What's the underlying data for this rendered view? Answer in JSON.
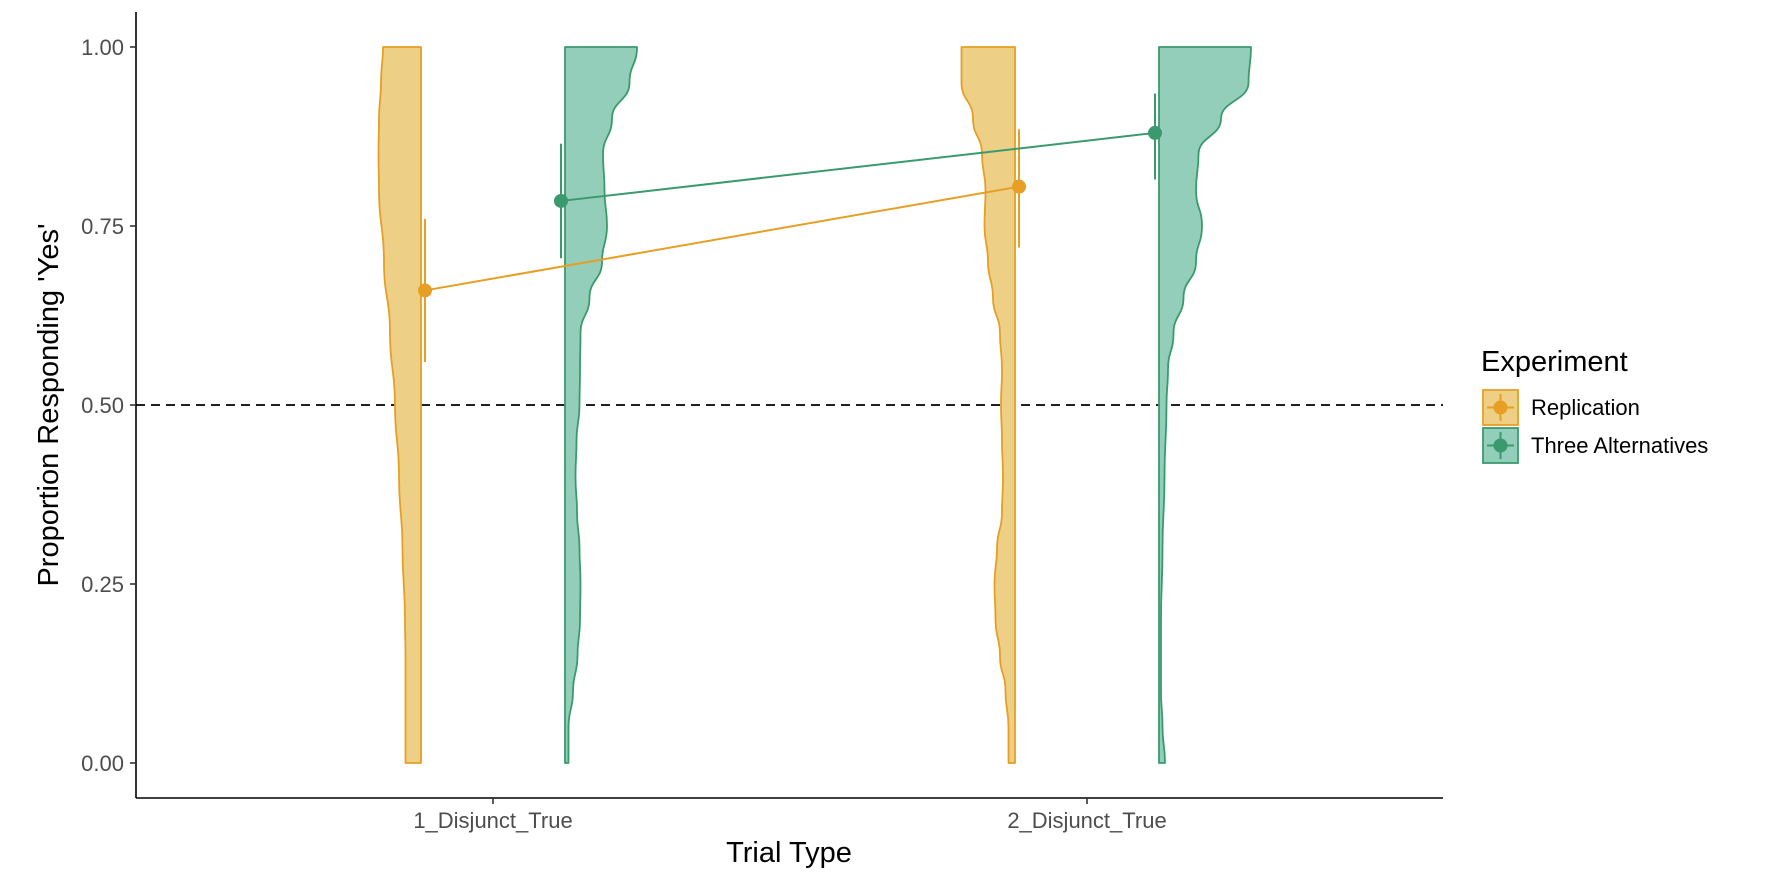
{
  "chart_data": {
    "type": "violin",
    "xlabel": "Trial Type",
    "ylabel": "Proportion Responding 'Yes'",
    "categories": [
      "1_Disjunct_True",
      "2_Disjunct_True"
    ],
    "ylim": [
      -0.05,
      1.05
    ],
    "yticks": [
      0.0,
      0.25,
      0.5,
      0.75,
      1.0
    ],
    "ytick_labels": [
      "0.00",
      "0.25",
      "0.50",
      "0.75",
      "1.00"
    ],
    "reference_line": {
      "y": 0.5,
      "style": "dashed",
      "color": "#000000"
    },
    "grid": false,
    "legend": {
      "title": "Experiment",
      "position": "right",
      "entries": [
        "Replication",
        "Three Alternatives"
      ]
    },
    "series": [
      {
        "name": "Replication",
        "color": "#E69F24",
        "fill": "#EDCF86",
        "side": "left",
        "points": [
          {
            "x": "1_Disjunct_True",
            "mean": 0.66,
            "ci_low": 0.56,
            "ci_high": 0.76
          },
          {
            "x": "2_Disjunct_True",
            "mean": 0.805,
            "ci_low": 0.72,
            "ci_high": 0.885
          }
        ],
        "density": [
          {
            "x": "1_Disjunct_True",
            "y": [
              0.0,
              0.05,
              0.1,
              0.15,
              0.2,
              0.3,
              0.4,
              0.5,
              0.6,
              0.7,
              0.8,
              0.85,
              0.9,
              0.95,
              1.0
            ],
            "width": [
              0.27,
              0.27,
              0.27,
              0.27,
              0.28,
              0.33,
              0.4,
              0.48,
              0.58,
              0.7,
              0.8,
              0.81,
              0.8,
              0.76,
              0.72
            ]
          },
          {
            "x": "2_Disjunct_True",
            "y": [
              0.0,
              0.05,
              0.1,
              0.15,
              0.2,
              0.25,
              0.3,
              0.35,
              0.4,
              0.45,
              0.5,
              0.55,
              0.6,
              0.65,
              0.7,
              0.75,
              0.8,
              0.85,
              0.9,
              0.95,
              1.0
            ],
            "width": [
              0.09,
              0.09,
              0.15,
              0.26,
              0.35,
              0.37,
              0.32,
              0.22,
              0.2,
              0.22,
              0.24,
              0.22,
              0.26,
              0.4,
              0.5,
              0.57,
              0.55,
              0.62,
              0.8,
              1.03,
              1.03
            ]
          }
        ]
      },
      {
        "name": "Three Alternatives",
        "color": "#3A9A6E",
        "fill": "#93CEBA",
        "side": "right",
        "points": [
          {
            "x": "1_Disjunct_True",
            "mean": 0.785,
            "ci_low": 0.705,
            "ci_high": 0.865
          },
          {
            "x": "2_Disjunct_True",
            "mean": 0.88,
            "ci_low": 0.815,
            "ci_high": 0.935
          }
        ],
        "density": [
          {
            "x": "1_Disjunct_True",
            "y": [
              0.0,
              0.05,
              0.1,
              0.15,
              0.2,
              0.25,
              0.3,
              0.35,
              0.4,
              0.45,
              0.5,
              0.55,
              0.6,
              0.65,
              0.7,
              0.75,
              0.8,
              0.85,
              0.9,
              0.95,
              1.0
            ],
            "width": [
              0.03,
              0.03,
              0.12,
              0.21,
              0.26,
              0.27,
              0.25,
              0.2,
              0.17,
              0.19,
              0.25,
              0.26,
              0.27,
              0.45,
              0.7,
              0.8,
              0.75,
              0.72,
              0.9,
              1.25,
              1.4
            ]
          },
          {
            "x": "2_Disjunct_True",
            "y": [
              0.0,
              0.05,
              0.1,
              0.15,
              0.2,
              0.3,
              0.4,
              0.5,
              0.55,
              0.6,
              0.65,
              0.7,
              0.75,
              0.8,
              0.85,
              0.9,
              0.95,
              1.0
            ],
            "width": [
              0.08,
              0.03,
              0.0,
              0.0,
              0.0,
              0.03,
              0.07,
              0.11,
              0.14,
              0.25,
              0.45,
              0.7,
              0.82,
              0.7,
              0.75,
              1.2,
              1.75,
              1.8
            ]
          }
        ]
      }
    ]
  }
}
